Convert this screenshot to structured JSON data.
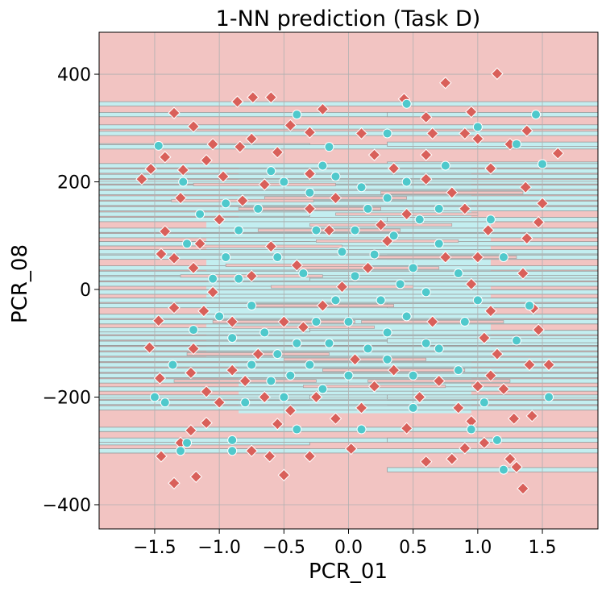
{
  "chart_data": {
    "type": "scatter",
    "title": "1-NN prediction (Task D)",
    "xlabel": "PCR_01",
    "ylabel": "PCR_08",
    "xlim": [
      -1.93,
      1.93
    ],
    "ylim": [
      -445,
      478
    ],
    "x_ticks": [
      -1.5,
      -1.0,
      -0.5,
      0.0,
      0.5,
      1.0,
      1.5
    ],
    "x_tick_labels": [
      "−1.5",
      "−1.0",
      "−0.5",
      "0.0",
      "0.5",
      "1.0",
      "1.5"
    ],
    "y_ticks": [
      -400,
      -200,
      0,
      200,
      400
    ],
    "y_tick_labels": [
      "−400",
      "−200",
      "0",
      "200",
      "400"
    ],
    "grid": true,
    "legend": "none",
    "background_class_color": "#f2c4c2",
    "other_class_color": "#c3eef0",
    "boundary_color": "#9a9a9a",
    "series": [
      {
        "marker": "diamond",
        "color": "#d9605a",
        "points": [
          [
            -1.35,
            328
          ],
          [
            -1.2,
            303
          ],
          [
            -0.86,
            349
          ],
          [
            -0.74,
            357
          ],
          [
            -0.6,
            357
          ],
          [
            -0.3,
            292
          ],
          [
            -0.2,
            335
          ],
          [
            0.43,
            354
          ],
          [
            0.75,
            384
          ],
          [
            1.15,
            401
          ],
          [
            -1.42,
            246
          ],
          [
            -1.53,
            224
          ],
          [
            -1.6,
            205
          ],
          [
            -1.28,
            222
          ],
          [
            -1.1,
            240
          ],
          [
            -0.97,
            210
          ],
          [
            -0.84,
            265
          ],
          [
            -1.42,
            108
          ],
          [
            -1.45,
            66
          ],
          [
            -1.35,
            58
          ],
          [
            -1.47,
            -58
          ],
          [
            -1.35,
            -34
          ],
          [
            -1.54,
            -108
          ],
          [
            -1.46,
            -165
          ],
          [
            -1.22,
            -155
          ],
          [
            -1.1,
            -190
          ],
          [
            -1.0,
            -210
          ],
          [
            -1.1,
            -248
          ],
          [
            -1.22,
            -262
          ],
          [
            -1.3,
            -285
          ],
          [
            -1.45,
            -310
          ],
          [
            -1.35,
            -360
          ],
          [
            -1.18,
            -348
          ],
          [
            -0.75,
            -300
          ],
          [
            -0.61,
            -310
          ],
          [
            -0.5,
            -345
          ],
          [
            -0.3,
            -310
          ],
          [
            0.02,
            -296
          ],
          [
            0.45,
            -258
          ],
          [
            0.6,
            -320
          ],
          [
            0.8,
            -315
          ],
          [
            0.9,
            -295
          ],
          [
            1.05,
            -285
          ],
          [
            1.25,
            -315
          ],
          [
            1.3,
            -330
          ],
          [
            1.35,
            -370
          ],
          [
            1.42,
            -235
          ],
          [
            1.55,
            -140
          ],
          [
            1.47,
            -75
          ],
          [
            1.43,
            -35
          ],
          [
            1.35,
            30
          ],
          [
            1.38,
            95
          ],
          [
            1.47,
            125
          ],
          [
            1.5,
            160
          ],
          [
            1.4,
            -140
          ],
          [
            1.2,
            -185
          ],
          [
            1.28,
            -240
          ],
          [
            1.62,
            253
          ],
          [
            1.38,
            295
          ],
          [
            1.37,
            190
          ],
          [
            1.1,
            225
          ],
          [
            1.0,
            280
          ],
          [
            0.9,
            290
          ],
          [
            0.65,
            290
          ],
          [
            0.6,
            250
          ],
          [
            0.35,
            225
          ],
          [
            0.2,
            250
          ],
          [
            -0.1,
            170
          ],
          [
            -0.3,
            215
          ],
          [
            -0.55,
            255
          ],
          [
            -0.75,
            280
          ],
          [
            -0.65,
            195
          ],
          [
            -0.82,
            165
          ],
          [
            -1.0,
            130
          ],
          [
            -1.15,
            85
          ],
          [
            -1.2,
            40
          ],
          [
            -1.05,
            -5
          ],
          [
            -1.12,
            -40
          ],
          [
            -1.2,
            -110
          ],
          [
            -0.9,
            -150
          ],
          [
            -0.7,
            -120
          ],
          [
            -0.65,
            -200
          ],
          [
            -0.55,
            -250
          ],
          [
            -0.45,
            -225
          ],
          [
            -0.25,
            -200
          ],
          [
            -0.1,
            -240
          ],
          [
            0.1,
            -220
          ],
          [
            0.2,
            -180
          ],
          [
            0.35,
            -150
          ],
          [
            0.55,
            -200
          ],
          [
            0.7,
            -170
          ],
          [
            0.85,
            -220
          ],
          [
            0.95,
            -245
          ],
          [
            1.0,
            -180
          ],
          [
            1.1,
            -160
          ],
          [
            1.15,
            -120
          ],
          [
            1.05,
            -90
          ],
          [
            1.1,
            -40
          ],
          [
            0.95,
            10
          ],
          [
            1.0,
            60
          ],
          [
            1.08,
            110
          ],
          [
            0.9,
            150
          ],
          [
            0.8,
            180
          ],
          [
            0.6,
            205
          ],
          [
            0.45,
            140
          ],
          [
            0.3,
            90
          ],
          [
            0.15,
            40
          ],
          [
            -0.05,
            5
          ],
          [
            -0.2,
            -30
          ],
          [
            -0.35,
            -70
          ],
          [
            -0.5,
            -60
          ],
          [
            -0.4,
            45
          ],
          [
            -0.6,
            80
          ],
          [
            -0.75,
            25
          ],
          [
            -0.9,
            -60
          ],
          [
            -0.8,
            -170
          ],
          [
            -1.3,
            170
          ],
          [
            -1.05,
            270
          ],
          [
            -0.45,
            305
          ],
          [
            0.1,
            290
          ],
          [
            0.6,
            320
          ],
          [
            0.95,
            330
          ],
          [
            1.25,
            270
          ],
          [
            0.25,
            120
          ],
          [
            -0.15,
            110
          ],
          [
            0.05,
            -130
          ],
          [
            0.65,
            -60
          ],
          [
            -0.3,
            150
          ],
          [
            0.75,
            60
          ]
        ]
      },
      {
        "marker": "circle",
        "color": "#4fc9cc",
        "points": [
          [
            -1.47,
            267
          ],
          [
            -0.4,
            325
          ],
          [
            -0.15,
            265
          ],
          [
            0.3,
            290
          ],
          [
            0.45,
            345
          ],
          [
            0.75,
            230
          ],
          [
            1.0,
            302
          ],
          [
            1.3,
            270
          ],
          [
            1.45,
            325
          ],
          [
            1.5,
            233
          ],
          [
            -1.28,
            200
          ],
          [
            -1.15,
            140
          ],
          [
            -1.25,
            85
          ],
          [
            -1.36,
            -140
          ],
          [
            -1.42,
            -210
          ],
          [
            -1.25,
            -285
          ],
          [
            -1.3,
            -300
          ],
          [
            -0.9,
            -280
          ],
          [
            -0.9,
            -300
          ],
          [
            -0.5,
            -200
          ],
          [
            -0.2,
            -185
          ],
          [
            0.0,
            -160
          ],
          [
            0.3,
            -130
          ],
          [
            0.5,
            -160
          ],
          [
            0.7,
            -110
          ],
          [
            0.9,
            -60
          ],
          [
            1.0,
            -20
          ],
          [
            0.85,
            30
          ],
          [
            0.7,
            85
          ],
          [
            0.55,
            130
          ],
          [
            0.3,
            170
          ],
          [
            0.1,
            190
          ],
          [
            -0.1,
            210
          ],
          [
            -0.3,
            180
          ],
          [
            -0.5,
            200
          ],
          [
            -0.7,
            150
          ],
          [
            -0.85,
            110
          ],
          [
            -0.95,
            60
          ],
          [
            -0.85,
            20
          ],
          [
            -0.75,
            -30
          ],
          [
            -0.65,
            -80
          ],
          [
            -0.55,
            -120
          ],
          [
            -0.4,
            -100
          ],
          [
            -0.25,
            -60
          ],
          [
            -0.1,
            -20
          ],
          [
            0.05,
            25
          ],
          [
            0.2,
            65
          ],
          [
            0.35,
            100
          ],
          [
            0.5,
            40
          ],
          [
            0.6,
            -5
          ],
          [
            0.45,
            -50
          ],
          [
            0.3,
            -80
          ],
          [
            0.15,
            -110
          ],
          [
            0.0,
            -60
          ],
          [
            -0.15,
            -100
          ],
          [
            -0.3,
            -140
          ],
          [
            -0.45,
            -160
          ],
          [
            -0.6,
            -170
          ],
          [
            -0.75,
            -140
          ],
          [
            -0.9,
            -90
          ],
          [
            -1.0,
            -50
          ],
          [
            -1.05,
            20
          ],
          [
            -0.95,
            160
          ],
          [
            -0.6,
            220
          ],
          [
            -0.2,
            230
          ],
          [
            0.15,
            150
          ],
          [
            0.45,
            200
          ],
          [
            0.7,
            150
          ],
          [
            0.85,
            -150
          ],
          [
            1.05,
            -210
          ],
          [
            1.15,
            -280
          ],
          [
            1.2,
            -335
          ],
          [
            1.4,
            -30
          ],
          [
            1.2,
            60
          ],
          [
            1.1,
            130
          ],
          [
            0.25,
            -20
          ],
          [
            -0.05,
            70
          ],
          [
            -0.35,
            30
          ],
          [
            -0.55,
            60
          ],
          [
            -0.25,
            110
          ],
          [
            0.05,
            110
          ],
          [
            0.4,
            10
          ],
          [
            0.6,
            -100
          ],
          [
            -0.8,
            -210
          ],
          [
            -0.4,
            -260
          ],
          [
            0.1,
            -260
          ],
          [
            0.5,
            -220
          ],
          [
            0.95,
            -260
          ],
          [
            1.55,
            -200
          ],
          [
            -1.5,
            -200
          ],
          [
            1.3,
            -95
          ],
          [
            -1.2,
            -75
          ]
        ]
      }
    ]
  }
}
